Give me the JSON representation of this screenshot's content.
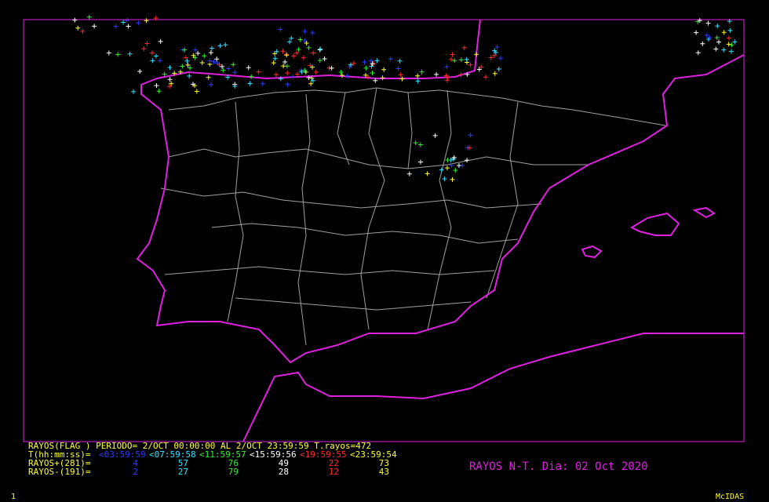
{
  "legend": {
    "header": "RAYOS(FLAG ) PERIODO= 2/OCT 00:00:00 AL  2/OCT 23:59:59  T.rayos=472",
    "time_label": "T(hh:mm:ss)=",
    "periods": [
      {
        "label": "<03:59:59",
        "color": "#2a3cff"
      },
      {
        "label": "<07:59:58",
        "color": "#33e0ff"
      },
      {
        "label": "<11:59:57",
        "color": "#33ee33"
      },
      {
        "label": "<15:59:56",
        "color": "#ffffff"
      },
      {
        "label": "<19:59:55",
        "color": "#ff2a2a"
      },
      {
        "label": "<23:59:54",
        "color": "#ffff33"
      }
    ],
    "rows": [
      {
        "label": "RAYOS+(281)=",
        "counts": [
          4,
          57,
          76,
          49,
          22,
          73
        ]
      },
      {
        "label": "RAYOS-(191)=",
        "counts": [
          2,
          27,
          79,
          28,
          12,
          43
        ]
      }
    ]
  },
  "map_title": "RAYOS N-T. Dia: 02 Oct 2020",
  "footer": {
    "frame": "1",
    "software": "McIDAS"
  }
}
